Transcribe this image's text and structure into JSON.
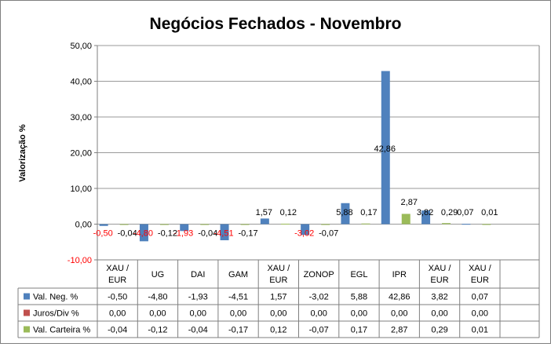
{
  "chart_data": {
    "type": "bar",
    "title": "Negócios Fechados - Novembro",
    "ylabel": "Valorização %",
    "xlabel": "",
    "ylim": [
      -10,
      50
    ],
    "yticks": [
      -10,
      0,
      10,
      20,
      30,
      40,
      50
    ],
    "ytick_labels": [
      "-10,00",
      "0,00",
      "10,00",
      "20,00",
      "30,00",
      "40,00",
      "50,00"
    ],
    "grid": true,
    "legend": "bottom-left (data table)",
    "categories": [
      [
        "XAU /",
        "EUR"
      ],
      [
        "UG"
      ],
      [
        "DAI"
      ],
      [
        "GAM"
      ],
      [
        "XAU /",
        "EUR"
      ],
      [
        "ZONOP"
      ],
      [
        "EGL"
      ],
      [
        "IPR"
      ],
      [
        "XAU /",
        "EUR"
      ],
      [
        "XAU /",
        "EUR"
      ]
    ],
    "series": [
      {
        "name": "Val. Neg. %",
        "color": "#4f81bd",
        "values": [
          -0.5,
          -4.8,
          -1.93,
          -4.51,
          1.57,
          -3.02,
          5.88,
          42.86,
          3.82,
          0.07
        ],
        "labels": [
          "-0,50",
          "-4,80",
          "-1,93",
          "-4,51",
          "1,57",
          "-3,02",
          "5,88",
          "42,86",
          "3,82",
          "0,07"
        ]
      },
      {
        "name": "Juros/Div %",
        "color": "#c0504d",
        "values": [
          0,
          0,
          0,
          0,
          0,
          0,
          0,
          0,
          0,
          0
        ],
        "labels": [
          "0,00",
          "0,00",
          "0,00",
          "0,00",
          "0,00",
          "0,00",
          "0,00",
          "0,00",
          "0,00",
          "0,00"
        ]
      },
      {
        "name": "Val. Carteira %",
        "color": "#9bbb59",
        "values": [
          -0.04,
          -0.12,
          -0.04,
          -0.17,
          0.12,
          -0.07,
          0.17,
          2.87,
          0.29,
          0.01
        ],
        "labels": [
          "-0,04",
          "-0,12",
          "-0,04",
          "-0,17",
          "0,12",
          "-0,07",
          "0,17",
          "2,87",
          "0,29",
          "0,01"
        ]
      }
    ],
    "negative_label_color": "#ff0000"
  }
}
